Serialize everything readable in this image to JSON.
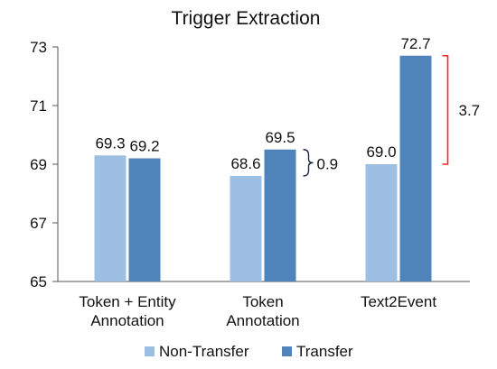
{
  "chart_data": {
    "type": "bar",
    "title": "Trigger Extraction",
    "categories": [
      [
        "Token + Entity",
        "Annotation"
      ],
      [
        "Token",
        "Annotation"
      ],
      [
        "Text2Event"
      ]
    ],
    "series": [
      {
        "name": "Non-Transfer",
        "values": [
          69.3,
          68.6,
          69.0
        ],
        "value_labels": [
          "69.3",
          "68.6",
          "69.0"
        ]
      },
      {
        "name": "Transfer",
        "values": [
          69.2,
          69.5,
          72.7
        ],
        "value_labels": [
          "69.2",
          "69.5",
          "72.7"
        ]
      }
    ],
    "legend_labels": [
      "Non-Transfer",
      "Transfer"
    ],
    "ylim": [
      65,
      73
    ],
    "yticks": [
      65,
      67,
      69,
      71,
      73
    ],
    "ytick_labels": [
      "65",
      "67",
      "69",
      "71",
      "73"
    ],
    "grid": false,
    "legend_position": "bottom",
    "annotations": [
      {
        "text": "0.9",
        "category": 1,
        "style": "brace",
        "color": "#1f2a44"
      },
      {
        "text": "3.7",
        "category": 2,
        "style": "bracket",
        "color": "#ff2020"
      }
    ],
    "colors": {
      "Non-Transfer": "#9dbfe3",
      "Transfer": "#4f84bb"
    }
  }
}
